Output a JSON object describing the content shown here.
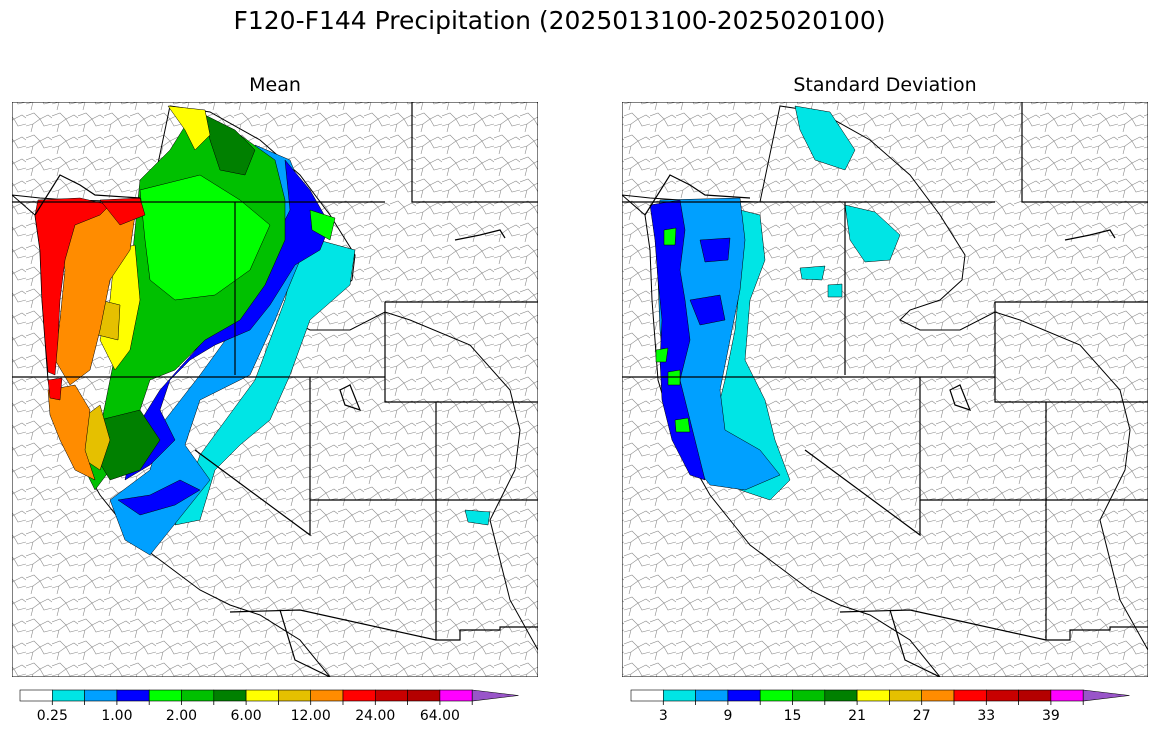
{
  "figure": {
    "title": "F120-F144 Precipitation (2025013100-2025020100)"
  },
  "panels": [
    {
      "title": "Mean",
      "colorbar": {
        "colors": [
          "#ffffff",
          "#00e5e5",
          "#00a0ff",
          "#0000ff",
          "#00ff00",
          "#00c000",
          "#008000",
          "#ffff00",
          "#e5c000",
          "#ff8c00",
          "#ff0000",
          "#c80000",
          "#b40000",
          "#ff00ff",
          "#9955c9"
        ],
        "tick_labels": [
          "0.25",
          "1.00",
          "2.00",
          "6.00",
          "12.00",
          "24.00",
          "64.00"
        ],
        "extend": "max"
      }
    },
    {
      "title": "Standard Deviation",
      "colorbar": {
        "colors": [
          "#ffffff",
          "#00e5e5",
          "#00a0ff",
          "#0000ff",
          "#00ff00",
          "#00c000",
          "#008000",
          "#ffff00",
          "#e5c000",
          "#ff8c00",
          "#ff0000",
          "#c80000",
          "#b40000",
          "#ff00ff",
          "#9955c9"
        ],
        "tick_labels": [
          "3",
          "9",
          "15",
          "21",
          "27",
          "33",
          "39"
        ],
        "extend": "max"
      }
    }
  ],
  "map_regions": {
    "mean_colors": {
      "coast_wet": "#ff0000",
      "coast_orange": "#ff8c00",
      "yellow": "#ffff00",
      "gold": "#e5c000",
      "green_bright": "#00ff00",
      "green_mid": "#00c000",
      "green_dark": "#008000",
      "blue": "#0000ff",
      "sky": "#00a0ff",
      "cyan": "#00e5e5"
    },
    "std_colors": {
      "blue": "#0000ff",
      "sky": "#00a0ff",
      "cyan": "#00e5e5",
      "green": "#00ff00"
    }
  }
}
